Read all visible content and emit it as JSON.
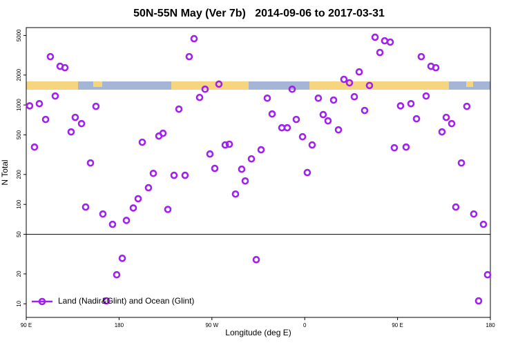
{
  "chart_data": {
    "type": "scatter",
    "log_y": true,
    "title": "50N-55N May (Ver 7b)   2014-09-06 to 2017-03-31",
    "x_label": "Longitude (deg E)",
    "y_label": "N Total",
    "xlim": [
      90,
      540
    ],
    "xticks": [
      {
        "value": 90,
        "label": "90 E"
      },
      {
        "value": 180,
        "label": "180"
      },
      {
        "value": 270,
        "label": "90 W"
      },
      {
        "value": 360,
        "label": "0"
      },
      {
        "value": 450,
        "label": "90 E"
      },
      {
        "value": 540,
        "label": "180"
      }
    ],
    "ylim": [
      7.3,
      6000
    ],
    "yticks": [
      10,
      20,
      50,
      100,
      200,
      500,
      1000,
      2000,
      5000
    ],
    "legend": "bottom-left",
    "series": [
      {
        "name": "Land (Nadir&Glint) and Ocean (Glint)",
        "color": "#a020f0",
        "x": [
          93.3,
          98,
          102.7,
          108.8,
          113.4,
          118.1,
          122.8,
          127.5,
          133.5,
          137.5,
          143.6,
          147.6,
          152.3,
          157.6,
          164.3,
          167.7,
          173.7,
          177.7,
          183.1,
          187.1,
          193.8,
          198.5,
          202.5,
          208.5,
          213.2,
          218.6,
          222.6,
          227.3,
          233.3,
          238,
          244,
          248,
          252.7,
          258.1,
          263.4,
          268.1,
          272.8,
          276.8,
          282.9,
          286.9,
          292.9,
          298.9,
          302.3,
          308.3,
          313,
          317.7,
          323.7,
          328.4,
          337.8,
          343.1,
          347.8,
          351.8,
          357.9,
          362.5,
          367.2,
          373.2,
          377.9,
          382.6,
          388,
          392.7,
          398,
          403.4,
          408.1,
          412.8,
          418.1,
          422.8,
          428.2,
          432.9,
          437.5,
          442.9,
          446.9,
          452.9,
          458.3,
          463,
          468.4,
          473,
          477.7,
          482.4,
          487.1,
          493.1,
          497.2,
          502.5,
          506.5,
          511.9,
          517.2,
          523.9,
          528.6,
          533.3,
          537.3
        ],
        "values": [
          980,
          377,
          1030,
          715,
          3060,
          1230,
          2450,
          2370,
          536,
          750,
          649,
          94,
          261,
          968,
          80,
          10.7,
          63,
          19.6,
          28.7,
          69,
          92,
          114,
          422,
          147,
          205,
          487,
          519,
          89,
          196,
          908,
          196,
          3060,
          4640,
          1190,
          1440,
          321,
          230,
          1620,
          396,
          403,
          127,
          226,
          172,
          287,
          27.8,
          354,
          1170,
          812,
          590,
          590,
          1440,
          715,
          479,
          209,
          396,
          1170,
          800,
          692,
          1120,
          562,
          1810,
          1670,
          1210,
          2150,
          880,
          1570,
          4800,
          3370,
          4420,
          4290,
          371,
          980,
          377,
          1030,
          726,
          3060,
          1230,
          2450,
          2370,
          536,
          750,
          649,
          94,
          261,
          968,
          80,
          10.7,
          63,
          19.6
        ]
      }
    ]
  }
}
